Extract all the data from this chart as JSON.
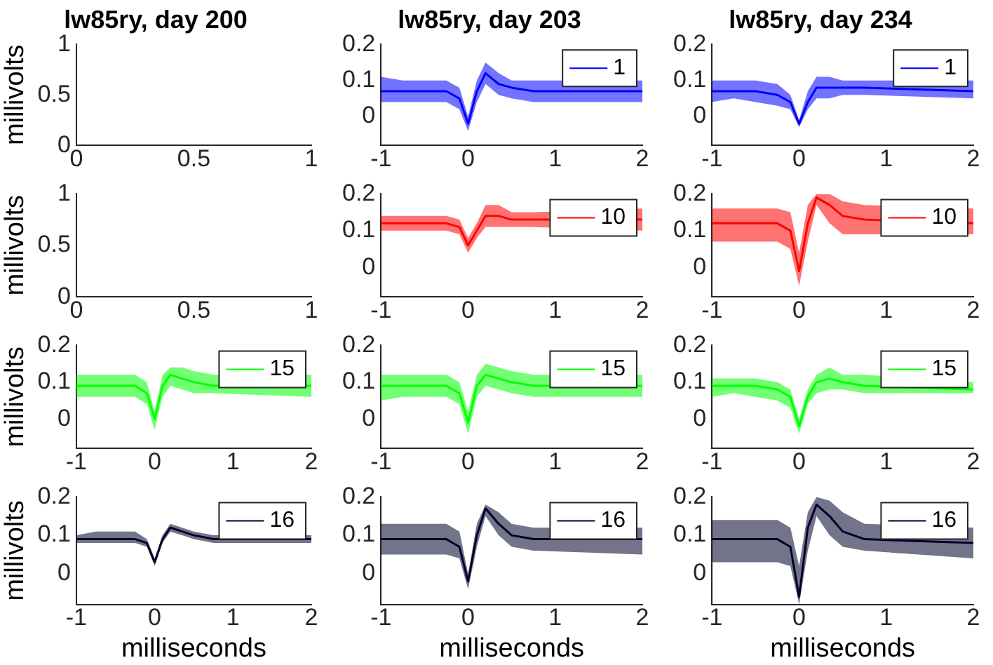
{
  "chart_data": [
    {
      "type": "line",
      "title": "lw85ry, day 200",
      "ylabel": "millivolts",
      "xlim": [
        0,
        1
      ],
      "xticks": [
        0,
        0.5,
        1
      ],
      "ylim": [
        0,
        1
      ],
      "yticks": [
        0,
        0.5,
        1
      ]
    },
    {
      "type": "line",
      "title": "lw85ry, day 203",
      "xlim": [
        -1,
        2
      ],
      "xticks": [
        -1,
        0,
        1,
        2
      ],
      "ylim": [
        -0.08,
        0.2
      ],
      "yticks": [
        0,
        0.1,
        0.2
      ],
      "legend": "top right",
      "marker": "none",
      "line_style": "solid",
      "x": [
        -1,
        -0.75,
        -0.5,
        -0.25,
        -0.1,
        0,
        0.1,
        0.2,
        0.35,
        0.5,
        0.75,
        2
      ],
      "series": [
        {
          "name": "1",
          "color": "#0000ff",
          "values": [
            0.07,
            0.07,
            0.07,
            0.07,
            0.05,
            -0.02,
            0.07,
            0.12,
            0.09,
            0.08,
            0.07,
            0.07
          ],
          "lower": [
            0.04,
            0.04,
            0.04,
            0.04,
            0.02,
            -0.04,
            0.04,
            0.09,
            0.06,
            0.05,
            0.04,
            0.04
          ],
          "upper": [
            0.11,
            0.1,
            0.1,
            0.1,
            0.08,
            0.0,
            0.1,
            0.15,
            0.12,
            0.1,
            0.1,
            0.1
          ]
        }
      ]
    },
    {
      "type": "line",
      "title": "lw85ry, day 234",
      "xlim": [
        -1,
        2
      ],
      "xticks": [
        -1,
        0,
        1,
        2
      ],
      "ylim": [
        -0.08,
        0.2
      ],
      "yticks": [
        0,
        0.1,
        0.2
      ],
      "legend": "top right",
      "marker": "none",
      "line_style": "solid",
      "x": [
        -1,
        -0.75,
        -0.5,
        -0.25,
        -0.1,
        0,
        0.1,
        0.2,
        0.35,
        0.5,
        0.75,
        2
      ],
      "series": [
        {
          "name": "1",
          "color": "#0000ff",
          "values": [
            0.07,
            0.07,
            0.07,
            0.06,
            0.04,
            -0.02,
            0.04,
            0.08,
            0.08,
            0.08,
            0.08,
            0.07
          ],
          "lower": [
            0.04,
            0.05,
            0.04,
            0.03,
            0.02,
            -0.03,
            0.02,
            0.05,
            0.05,
            0.06,
            0.06,
            0.05
          ],
          "upper": [
            0.1,
            0.1,
            0.1,
            0.09,
            0.06,
            -0.01,
            0.07,
            0.11,
            0.11,
            0.1,
            0.1,
            0.1
          ]
        }
      ]
    },
    {
      "type": "line",
      "ylabel": "millivolts",
      "xlim": [
        0,
        1
      ],
      "xticks": [
        0,
        0.5,
        1
      ],
      "ylim": [
        0,
        1
      ],
      "yticks": [
        0,
        0.5,
        1
      ]
    },
    {
      "type": "line",
      "xlim": [
        -1,
        2
      ],
      "xticks": [
        -1,
        0,
        1,
        2
      ],
      "ylim": [
        -0.08,
        0.2
      ],
      "yticks": [
        0,
        0.1,
        0.2
      ],
      "legend": "top right",
      "marker": "none",
      "line_style": "solid",
      "x": [
        -1,
        -0.75,
        -0.5,
        -0.25,
        -0.1,
        0,
        0.1,
        0.2,
        0.35,
        0.5,
        0.75,
        2
      ],
      "series": [
        {
          "name": "10",
          "color": "#ff0000",
          "values": [
            0.12,
            0.12,
            0.12,
            0.12,
            0.11,
            0.06,
            0.1,
            0.14,
            0.14,
            0.13,
            0.13,
            0.13
          ],
          "lower": [
            0.1,
            0.1,
            0.1,
            0.1,
            0.09,
            0.04,
            0.08,
            0.11,
            0.11,
            0.11,
            0.11,
            0.1
          ],
          "upper": [
            0.14,
            0.14,
            0.14,
            0.14,
            0.13,
            0.08,
            0.12,
            0.17,
            0.17,
            0.15,
            0.15,
            0.16
          ]
        }
      ]
    },
    {
      "type": "line",
      "xlim": [
        -1,
        2
      ],
      "xticks": [
        -1,
        0,
        1,
        2
      ],
      "ylim": [
        -0.08,
        0.2
      ],
      "yticks": [
        0,
        0.1,
        0.2
      ],
      "legend": "top right",
      "marker": "none",
      "line_style": "solid",
      "x": [
        -1,
        -0.75,
        -0.5,
        -0.25,
        -0.1,
        0,
        0.1,
        0.2,
        0.35,
        0.5,
        0.75,
        2
      ],
      "series": [
        {
          "name": "10",
          "color": "#ff0000",
          "values": [
            0.12,
            0.12,
            0.12,
            0.12,
            0.1,
            -0.01,
            0.12,
            0.19,
            0.17,
            0.14,
            0.13,
            0.12
          ],
          "lower": [
            0.07,
            0.07,
            0.07,
            0.07,
            0.05,
            -0.05,
            0.07,
            0.17,
            0.12,
            0.09,
            0.09,
            0.09
          ],
          "upper": [
            0.16,
            0.16,
            0.16,
            0.16,
            0.15,
            0.04,
            0.17,
            0.2,
            0.2,
            0.18,
            0.17,
            0.16
          ]
        }
      ]
    },
    {
      "type": "line",
      "ylabel": "millivolts",
      "xlim": [
        -1,
        2
      ],
      "xticks": [
        -1,
        0,
        1,
        2
      ],
      "ylim": [
        -0.08,
        0.2
      ],
      "yticks": [
        0,
        0.1,
        0.2
      ],
      "legend": "top right",
      "marker": "none",
      "line_style": "solid",
      "x": [
        -1,
        -0.75,
        -0.5,
        -0.25,
        -0.1,
        0,
        0.1,
        0.2,
        0.35,
        0.5,
        0.75,
        2
      ],
      "series": [
        {
          "name": "15",
          "color": "#00ff00",
          "values": [
            0.09,
            0.09,
            0.09,
            0.09,
            0.07,
            0.0,
            0.09,
            0.12,
            0.11,
            0.1,
            0.09,
            0.09
          ],
          "lower": [
            0.06,
            0.06,
            0.06,
            0.06,
            0.04,
            -0.03,
            0.06,
            0.09,
            0.08,
            0.07,
            0.07,
            0.06
          ],
          "upper": [
            0.12,
            0.12,
            0.12,
            0.12,
            0.1,
            0.02,
            0.12,
            0.14,
            0.14,
            0.13,
            0.12,
            0.12
          ]
        }
      ]
    },
    {
      "type": "line",
      "xlim": [
        -1,
        2
      ],
      "xticks": [
        -1,
        0,
        1,
        2
      ],
      "ylim": [
        -0.08,
        0.2
      ],
      "yticks": [
        0,
        0.1,
        0.2
      ],
      "legend": "top right",
      "marker": "none",
      "line_style": "solid",
      "x": [
        -1,
        -0.75,
        -0.5,
        -0.25,
        -0.1,
        0,
        0.1,
        0.2,
        0.35,
        0.5,
        0.75,
        2
      ],
      "series": [
        {
          "name": "15",
          "color": "#00ff00",
          "values": [
            0.09,
            0.09,
            0.09,
            0.09,
            0.07,
            -0.01,
            0.09,
            0.12,
            0.11,
            0.1,
            0.09,
            0.09
          ],
          "lower": [
            0.05,
            0.06,
            0.06,
            0.06,
            0.04,
            -0.04,
            0.06,
            0.09,
            0.08,
            0.07,
            0.06,
            0.06
          ],
          "upper": [
            0.12,
            0.12,
            0.12,
            0.12,
            0.1,
            0.02,
            0.12,
            0.15,
            0.14,
            0.13,
            0.12,
            0.12
          ]
        }
      ]
    },
    {
      "type": "line",
      "xlim": [
        -1,
        2
      ],
      "xticks": [
        -1,
        0,
        1,
        2
      ],
      "ylim": [
        -0.08,
        0.2
      ],
      "yticks": [
        0,
        0.1,
        0.2
      ],
      "legend": "top right",
      "marker": "none",
      "line_style": "solid",
      "x": [
        -1,
        -0.75,
        -0.5,
        -0.25,
        -0.1,
        0,
        0.1,
        0.2,
        0.35,
        0.5,
        0.75,
        2
      ],
      "series": [
        {
          "name": "15",
          "color": "#00ff00",
          "values": [
            0.09,
            0.09,
            0.09,
            0.08,
            0.06,
            -0.02,
            0.06,
            0.1,
            0.11,
            0.1,
            0.09,
            0.08
          ],
          "lower": [
            0.06,
            0.07,
            0.06,
            0.05,
            0.03,
            -0.04,
            0.04,
            0.07,
            0.08,
            0.08,
            0.07,
            0.07
          ],
          "upper": [
            0.11,
            0.11,
            0.11,
            0.1,
            0.08,
            0.0,
            0.08,
            0.12,
            0.14,
            0.12,
            0.12,
            0.1
          ]
        }
      ]
    },
    {
      "type": "line",
      "ylabel": "millivolts",
      "xlabel": "milliseconds",
      "xlim": [
        -1,
        2
      ],
      "xticks": [
        -1,
        0,
        1,
        2
      ],
      "ylim": [
        -0.08,
        0.2
      ],
      "yticks": [
        0,
        0.1,
        0.2
      ],
      "legend": "top right",
      "marker": "none",
      "line_style": "solid",
      "x": [
        -1,
        -0.75,
        -0.5,
        -0.25,
        -0.1,
        0,
        0.1,
        0.2,
        0.35,
        0.5,
        0.75,
        2
      ],
      "series": [
        {
          "name": "16",
          "color": "#000028",
          "values": [
            0.09,
            0.09,
            0.09,
            0.09,
            0.08,
            0.03,
            0.09,
            0.12,
            0.11,
            0.1,
            0.09,
            0.09
          ],
          "lower": [
            0.08,
            0.08,
            0.08,
            0.08,
            0.07,
            0.02,
            0.08,
            0.11,
            0.1,
            0.09,
            0.08,
            0.08
          ],
          "upper": [
            0.1,
            0.11,
            0.11,
            0.11,
            0.09,
            0.04,
            0.1,
            0.13,
            0.12,
            0.11,
            0.1,
            0.1
          ]
        }
      ]
    },
    {
      "type": "line",
      "xlabel": "milliseconds",
      "xlim": [
        -1,
        2
      ],
      "xticks": [
        -1,
        0,
        1,
        2
      ],
      "ylim": [
        -0.08,
        0.2
      ],
      "yticks": [
        0,
        0.1,
        0.2
      ],
      "legend": "top right",
      "marker": "none",
      "line_style": "solid",
      "x": [
        -1,
        -0.75,
        -0.5,
        -0.25,
        -0.1,
        0,
        0.1,
        0.2,
        0.35,
        0.5,
        0.75,
        2
      ],
      "series": [
        {
          "name": "16",
          "color": "#000028",
          "values": [
            0.09,
            0.09,
            0.09,
            0.09,
            0.07,
            -0.02,
            0.1,
            0.17,
            0.13,
            0.1,
            0.09,
            0.09
          ],
          "lower": [
            0.05,
            0.05,
            0.05,
            0.05,
            0.04,
            -0.04,
            0.07,
            0.15,
            0.1,
            0.07,
            0.06,
            0.05
          ],
          "upper": [
            0.13,
            0.13,
            0.13,
            0.13,
            0.11,
            0.0,
            0.13,
            0.18,
            0.16,
            0.13,
            0.12,
            0.12
          ]
        }
      ]
    },
    {
      "type": "line",
      "xlabel": "milliseconds",
      "xlim": [
        -1,
        2
      ],
      "xticks": [
        -1,
        0,
        1,
        2
      ],
      "ylim": [
        -0.08,
        0.2
      ],
      "yticks": [
        0,
        0.1,
        0.2
      ],
      "legend": "top right",
      "marker": "none",
      "line_style": "solid",
      "x": [
        -1,
        -0.75,
        -0.5,
        -0.25,
        -0.1,
        0,
        0.1,
        0.2,
        0.35,
        0.5,
        0.75,
        2
      ],
      "series": [
        {
          "name": "16",
          "color": "#000028",
          "values": [
            0.09,
            0.09,
            0.09,
            0.09,
            0.07,
            -0.06,
            0.12,
            0.18,
            0.15,
            0.11,
            0.09,
            0.08
          ],
          "lower": [
            0.03,
            0.03,
            0.03,
            0.03,
            0.02,
            -0.08,
            0.06,
            0.15,
            0.1,
            0.07,
            0.06,
            0.04
          ],
          "upper": [
            0.14,
            0.14,
            0.14,
            0.14,
            0.12,
            0.02,
            0.16,
            0.2,
            0.19,
            0.16,
            0.13,
            0.12
          ]
        }
      ]
    }
  ]
}
